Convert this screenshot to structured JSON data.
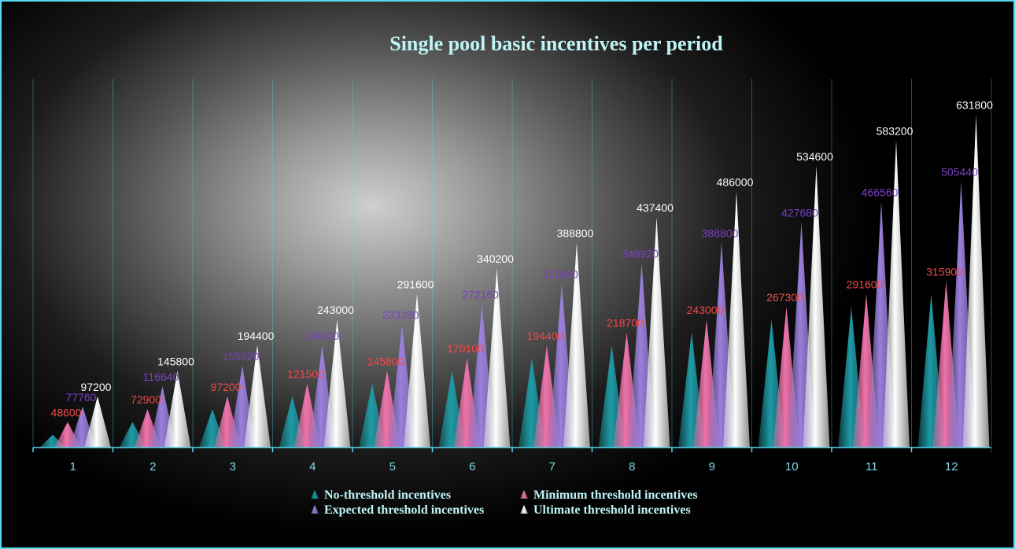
{
  "chart_data": {
    "type": "bar",
    "bar_shape": "cone",
    "title": "Single pool basic incentives per period",
    "xlabel": "",
    "ylabel": "",
    "categories": [
      "1",
      "2",
      "3",
      "4",
      "5",
      "6",
      "7",
      "8",
      "9",
      "10",
      "11",
      "12"
    ],
    "ylim": [
      0,
      700000
    ],
    "grid": false,
    "legend_position": "bottom",
    "series": [
      {
        "name": "No-threshold incentives",
        "color": "#1e9aa6",
        "values": [
          24300,
          48600,
          72900,
          97200,
          121500,
          145800,
          170100,
          194400,
          218700,
          243000,
          267300,
          291600
        ],
        "labels_shown": false
      },
      {
        "name": "Minimum threshold incentives",
        "color": "#ee74ac",
        "label_color": "#f04a4a",
        "values": [
          48600,
          72900,
          97200,
          121500,
          145800,
          170100,
          194400,
          218700,
          243000,
          267300,
          291600,
          315900
        ],
        "labels_shown": true
      },
      {
        "name": "Expected threshold incentives",
        "color": "#9a80dc",
        "label_color": "#7d3fc6",
        "values": [
          77760,
          116640,
          155520,
          194400,
          233280,
          272160,
          311040,
          349920,
          388800,
          427680,
          466560,
          505440
        ],
        "labels_shown": true
      },
      {
        "name": "Ultimate threshold incentives",
        "color": "#ffffff",
        "label_color": "#ffffff",
        "values": [
          97200,
          145800,
          194400,
          243000,
          291600,
          340200,
          388800,
          437400,
          486000,
          534600,
          583200,
          631800
        ],
        "labels_shown": true
      }
    ]
  }
}
